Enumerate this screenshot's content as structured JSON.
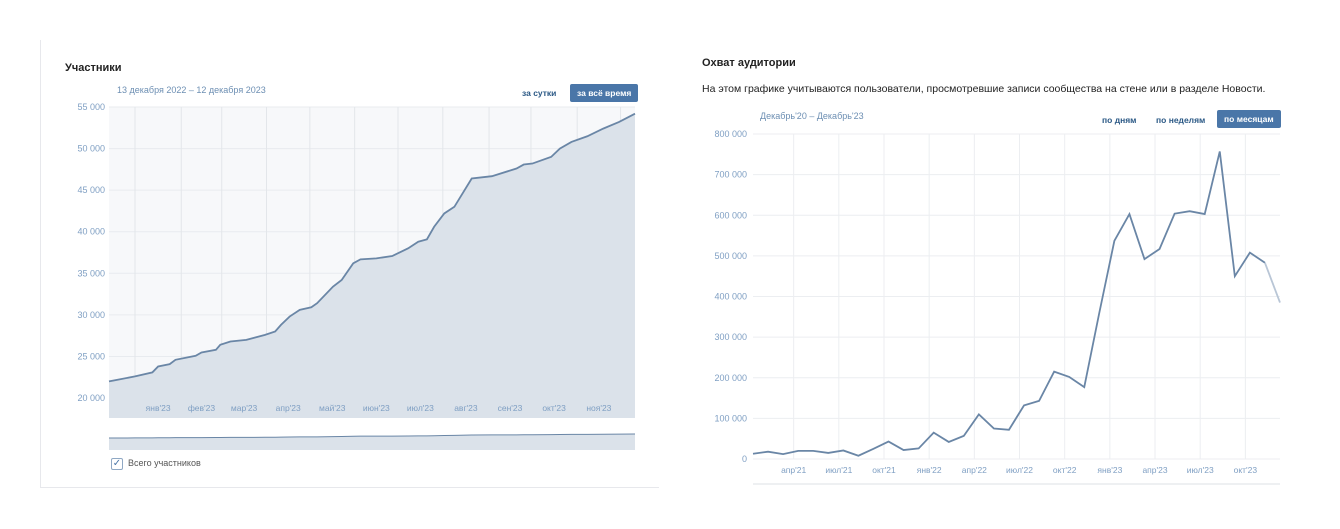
{
  "left": {
    "title": "Участники",
    "range": "13 декабря 2022 – 12 декабря 2023",
    "buttons": [
      "за сутки",
      "за всё время"
    ],
    "legend": "Всего участников"
  },
  "right": {
    "title": "Охват аудитории",
    "description": "На этом графике учитываются пользователи, просмотревшие записи сообщества на стене или в разделе Новости.",
    "range": "Декабрь'20 – Декабрь'23",
    "buttons": [
      "по дням",
      "по неделям",
      "по месяцам"
    ]
  },
  "colors": {
    "line": "#6a86a6",
    "fill": "#dbe2ea",
    "accent": "#4a76a8",
    "axis": "#7f9fc3"
  },
  "chart_data": [
    {
      "type": "area",
      "title": "Участники",
      "series": [
        {
          "name": "Всего участников",
          "x": [
            0,
            18,
            30,
            34,
            42,
            46,
            60,
            64,
            74,
            77,
            84,
            95,
            108,
            115,
            119,
            125,
            132,
            140,
            144,
            155,
            161,
            169,
            174,
            185,
            196,
            207,
            214,
            220,
            225,
            232,
            239,
            251,
            265,
            282,
            287,
            293,
            306,
            312,
            320,
            331,
            342,
            353,
            364
          ],
          "values": [
            22000,
            22600,
            23080,
            23800,
            24080,
            24600,
            25080,
            25480,
            25800,
            26400,
            26800,
            27000,
            27600,
            28000,
            28800,
            29800,
            30600,
            30920,
            31400,
            33400,
            34200,
            36200,
            36680,
            36800,
            37080,
            38000,
            38800,
            39080,
            40600,
            42200,
            43000,
            46400,
            46680,
            47600,
            48080,
            48200,
            49000,
            50000,
            50800,
            51480,
            52400,
            53200,
            54200
          ]
        }
      ],
      "xlim": [
        0,
        364
      ],
      "ylim": [
        17600,
        55000
      ],
      "yticks": [
        20000,
        25000,
        30000,
        35000,
        40000,
        45000,
        50000,
        55000
      ],
      "ytick_labels": [
        "20 000",
        "25 000",
        "30 000",
        "35 000",
        "40 000",
        "45 000",
        "50 000",
        "55 000"
      ],
      "xgrid": [
        18,
        50,
        78,
        109,
        139,
        170,
        200,
        231,
        263,
        292,
        324,
        354
      ],
      "xtick_labels": [
        "янв'23",
        "фев'23",
        "мар'23",
        "апр'23",
        "май'23",
        "июн'23",
        "июл'23",
        "авг'23",
        "сен'23",
        "окт'23",
        "ноя'23"
      ],
      "grid": true
    },
    {
      "type": "line",
      "title": "Охват аудитории",
      "series": [
        {
          "name": "Охват",
          "values": [
            13000,
            18000,
            12000,
            20000,
            20000,
            15000,
            21000,
            8000,
            25000,
            43000,
            22000,
            26000,
            65000,
            42000,
            57000,
            110000,
            75000,
            72000,
            132000,
            143000,
            215000,
            202000,
            177000,
            360000,
            537000,
            603000,
            492000,
            517000,
            604000,
            610000,
            603000,
            757000,
            450000,
            508000,
            483000,
            385000
          ]
        }
      ],
      "ylim": [
        0,
        800000
      ],
      "yticks": [
        0,
        100000,
        200000,
        300000,
        400000,
        500000,
        600000,
        700000,
        800000
      ],
      "ytick_labels": [
        "0",
        "100 000",
        "200 000",
        "300 000",
        "400 000",
        "500 000",
        "600 000",
        "700 000",
        "800 000"
      ],
      "xtick_pos": [
        2.7,
        5.7,
        8.7,
        11.7,
        14.7,
        17.7,
        20.7,
        23.7,
        26.7,
        29.7,
        32.7
      ],
      "xtick_labels": [
        "апр'21",
        "июл'21",
        "окт'21",
        "янв'22",
        "апр'22",
        "июл'22",
        "окт'22",
        "янв'23",
        "апр'23",
        "июл'23",
        "окт'23"
      ],
      "grid": true
    }
  ]
}
